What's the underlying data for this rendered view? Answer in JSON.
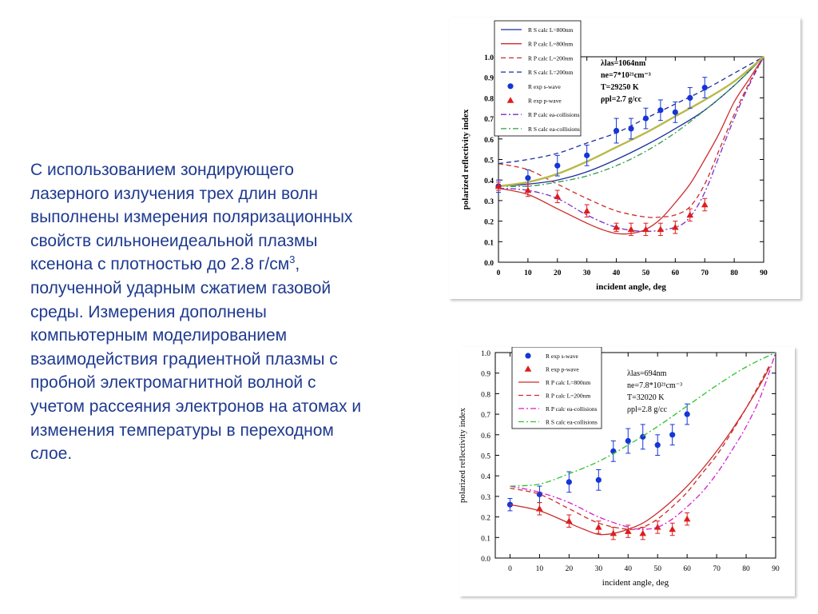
{
  "slide_text": {
    "lines": [
      "С использованием зондирующего",
      "лазерного излучения трех длин волн",
      "выполнены измерения поляризационных",
      "свойств сильнонеидеальной плазмы",
      "ксенона с плотностью до 2.8 г/см",
      "полученной ударным сжатием газовой",
      "среды. Измерения дополнены",
      "компьютерным моделированием",
      "взаимодействия градиентной плазмы с",
      "пробной электромагнитной волной с",
      "учетом рассеяния электронов на атомах и",
      "изменения температуры в переходном",
      "слое."
    ],
    "superscript": "3",
    "after_superscript": ","
  },
  "chart_data": [
    {
      "type": "line",
      "xlabel": "incident angle, deg",
      "ylabel": "polarized reflectivity index",
      "xlim": [
        0,
        90
      ],
      "ylim": [
        0,
        1.0
      ],
      "x_ticks": [
        "0",
        "10",
        "20",
        "30",
        "40",
        "50",
        "60",
        "70",
        "80",
        "90"
      ],
      "y_ticks": [
        "0.0",
        "0.1",
        "0.2",
        "0.3",
        "0.4",
        "0.5",
        "0.6",
        "0.7",
        "0.8",
        "0.9",
        "1.0"
      ],
      "grid": false,
      "legend_position": "top-left",
      "params": [
        "λlas=1064nm",
        "ne=7*10²¹cm⁻³",
        "T=29250 K",
        "ρpl=2.7 g/cc"
      ],
      "series": [
        {
          "name": "R S calc L=800nm",
          "color": "#1f2f9e",
          "dash": "solid",
          "x": [
            0,
            10,
            20,
            30,
            40,
            50,
            60,
            70,
            80,
            90
          ],
          "y": [
            0.37,
            0.38,
            0.4,
            0.44,
            0.5,
            0.57,
            0.65,
            0.74,
            0.86,
            1.0
          ]
        },
        {
          "name": "R P calc L=800nm",
          "color": "#cc2b2b",
          "dash": "solid",
          "x": [
            0,
            10,
            20,
            30,
            35,
            40,
            45,
            50,
            55,
            60,
            65,
            70,
            75,
            80,
            85,
            90
          ],
          "y": [
            0.36,
            0.33,
            0.26,
            0.19,
            0.16,
            0.14,
            0.14,
            0.16,
            0.21,
            0.29,
            0.38,
            0.5,
            0.63,
            0.78,
            0.89,
            1.0
          ]
        },
        {
          "name": "R P calc L=200nm",
          "color": "#cc2b2b",
          "dash": "dashed",
          "x": [
            0,
            10,
            20,
            30,
            40,
            50,
            55,
            60,
            65,
            70,
            75,
            80,
            85,
            90
          ],
          "y": [
            0.48,
            0.45,
            0.38,
            0.31,
            0.25,
            0.22,
            0.22,
            0.23,
            0.27,
            0.38,
            0.55,
            0.72,
            0.87,
            1.0
          ]
        },
        {
          "name": "R S calc L=200nm",
          "color": "#1f2f9e",
          "dash": "dashed",
          "x": [
            0,
            10,
            20,
            30,
            40,
            50,
            60,
            70,
            80,
            90
          ],
          "y": [
            0.48,
            0.5,
            0.53,
            0.58,
            0.63,
            0.7,
            0.77,
            0.84,
            0.92,
            1.0
          ]
        },
        {
          "name": "R P calc ea-collisions",
          "color": "#7b2bc8",
          "dash": "dashdot",
          "x": [
            0,
            10,
            20,
            30,
            40,
            50,
            60,
            65,
            70,
            75,
            80,
            85,
            90
          ],
          "y": [
            0.36,
            0.35,
            0.31,
            0.23,
            0.17,
            0.15,
            0.17,
            0.22,
            0.34,
            0.52,
            0.7,
            0.86,
            1.0
          ]
        },
        {
          "name": "R S calc ea-collisions",
          "color": "#2e9e4a",
          "dash": "dashdot",
          "x": [
            0,
            10,
            20,
            30,
            40,
            50,
            60,
            70,
            80,
            90
          ],
          "y": [
            0.37,
            0.37,
            0.39,
            0.42,
            0.47,
            0.54,
            0.63,
            0.74,
            0.86,
            1.0
          ]
        },
        {
          "name": "",
          "color": "#b9b94a",
          "dash": "thick",
          "x": [
            0,
            10,
            20,
            30,
            40,
            50,
            60,
            70,
            80,
            90
          ],
          "y": [
            0.37,
            0.39,
            0.43,
            0.49,
            0.56,
            0.63,
            0.71,
            0.79,
            0.88,
            1.0
          ]
        },
        {
          "name": "R exp s-wave",
          "color": "#1536d6",
          "marker": "circle",
          "x": [
            0,
            10,
            20,
            30,
            40,
            45,
            50,
            55,
            60,
            65,
            70
          ],
          "y": [
            0.37,
            0.41,
            0.47,
            0.52,
            0.64,
            0.65,
            0.7,
            0.74,
            0.73,
            0.8,
            0.85
          ],
          "err": [
            0.03,
            0.04,
            0.05,
            0.05,
            0.06,
            0.05,
            0.05,
            0.05,
            0.05,
            0.05,
            0.05
          ]
        },
        {
          "name": "R exp p-wave",
          "color": "#dd1c1c",
          "marker": "triangle",
          "x": [
            0,
            10,
            20,
            30,
            40,
            45,
            50,
            55,
            60,
            65,
            70
          ],
          "y": [
            0.37,
            0.35,
            0.32,
            0.25,
            0.17,
            0.16,
            0.16,
            0.16,
            0.17,
            0.23,
            0.28
          ],
          "err": [
            0.02,
            0.03,
            0.03,
            0.03,
            0.02,
            0.03,
            0.03,
            0.03,
            0.03,
            0.03,
            0.03
          ]
        }
      ]
    },
    {
      "type": "line",
      "xlabel": "incident angle, deg",
      "ylabel": "polarized reflectivity index",
      "xlim": [
        -5,
        90
      ],
      "ylim": [
        0,
        1.0
      ],
      "x_ticks": [
        "0",
        "10",
        "20",
        "30",
        "40",
        "50",
        "60",
        "70",
        "80",
        "90"
      ],
      "y_ticks": [
        "0.0",
        "0.1",
        "0.2",
        "0.3",
        "0.4",
        "0.5",
        "0.6",
        "0.7",
        "0.8",
        "0.9",
        "1.0"
      ],
      "grid": false,
      "legend_position": "top-left",
      "params": [
        "λlas=694nm",
        "ne=7.8*10²¹cm⁻³",
        "T=32020 K",
        "ρpl=2.8 g/cc"
      ],
      "series": [
        {
          "name": "R exp s-wave",
          "color": "#1536d6",
          "marker": "circle",
          "x": [
            0,
            10,
            20,
            30,
            35,
            40,
            45,
            50,
            55,
            60
          ],
          "y": [
            0.26,
            0.31,
            0.37,
            0.38,
            0.52,
            0.57,
            0.59,
            0.55,
            0.6,
            0.7
          ],
          "err": [
            0.03,
            0.04,
            0.05,
            0.05,
            0.05,
            0.06,
            0.06,
            0.05,
            0.05,
            0.05
          ]
        },
        {
          "name": "R exp p-wave",
          "color": "#dd1c1c",
          "marker": "triangle",
          "x": [
            10,
            20,
            30,
            35,
            40,
            45,
            50,
            55,
            60
          ],
          "y": [
            0.24,
            0.18,
            0.15,
            0.12,
            0.13,
            0.12,
            0.15,
            0.14,
            0.19
          ],
          "err": [
            0.03,
            0.03,
            0.03,
            0.03,
            0.03,
            0.03,
            0.03,
            0.03,
            0.03
          ]
        },
        {
          "name": "R P calc L=800nm",
          "color": "#cc2b2b",
          "dash": "solid",
          "x": [
            0,
            10,
            20,
            25,
            30,
            35,
            40,
            45,
            50,
            55,
            60,
            65,
            70,
            75,
            80,
            85,
            88
          ],
          "y": [
            0.26,
            0.23,
            0.17,
            0.14,
            0.115,
            0.12,
            0.14,
            0.17,
            0.22,
            0.28,
            0.35,
            0.43,
            0.52,
            0.62,
            0.73,
            0.85,
            0.93
          ]
        },
        {
          "name": "R P calc L=200nm",
          "color": "#cc2b2b",
          "dash": "dashed",
          "x": [
            0,
            10,
            20,
            30,
            40,
            45,
            50,
            55,
            60,
            65,
            70,
            75,
            80,
            85,
            88
          ],
          "y": [
            0.34,
            0.31,
            0.24,
            0.17,
            0.14,
            0.15,
            0.19,
            0.25,
            0.32,
            0.41,
            0.5,
            0.61,
            0.73,
            0.86,
            0.94
          ]
        },
        {
          "name": "R P calc ea-collisions",
          "color": "#d41fcf",
          "dash": "dashdot",
          "x": [
            0,
            10,
            20,
            30,
            40,
            45,
            50,
            55,
            60,
            65,
            70,
            75,
            80,
            85,
            90
          ],
          "y": [
            0.35,
            0.32,
            0.27,
            0.2,
            0.15,
            0.14,
            0.15,
            0.19,
            0.25,
            0.32,
            0.41,
            0.52,
            0.64,
            0.79,
            1.0
          ]
        },
        {
          "name": "R S calc ea-collisions",
          "color": "#2fc42f",
          "dash": "dashdot",
          "x": [
            0,
            10,
            20,
            30,
            40,
            50,
            60,
            70,
            80,
            90
          ],
          "y": [
            0.35,
            0.36,
            0.41,
            0.47,
            0.55,
            0.64,
            0.74,
            0.84,
            0.93,
            1.0
          ]
        }
      ]
    }
  ]
}
